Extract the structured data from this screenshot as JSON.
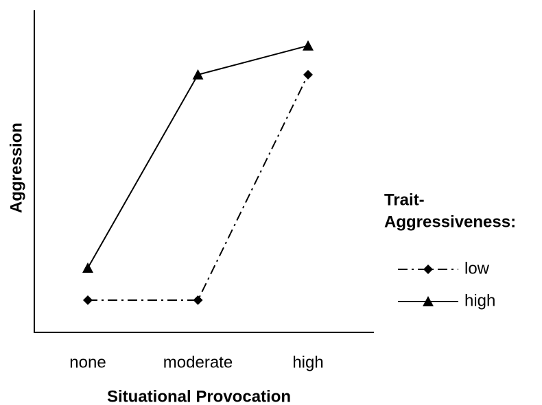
{
  "chart_data": {
    "type": "line",
    "x_label": "Situational Provocation",
    "y_label": "Aggression",
    "categories": [
      "none",
      "moderate",
      "high"
    ],
    "series": [
      {
        "name": "low",
        "color": "#000000",
        "dash": "dashdot",
        "marker": "diamond",
        "values": [
          1.0,
          1.0,
          8.0
        ]
      },
      {
        "name": "high",
        "color": "#000000",
        "dash": "solid",
        "marker": "triangle",
        "values": [
          2.0,
          8.0,
          8.9
        ]
      }
    ],
    "ylim": [
      0,
      10
    ],
    "legend_title": [
      "Trait-",
      "Aggressiveness:"
    ],
    "legend_position": "right"
  }
}
